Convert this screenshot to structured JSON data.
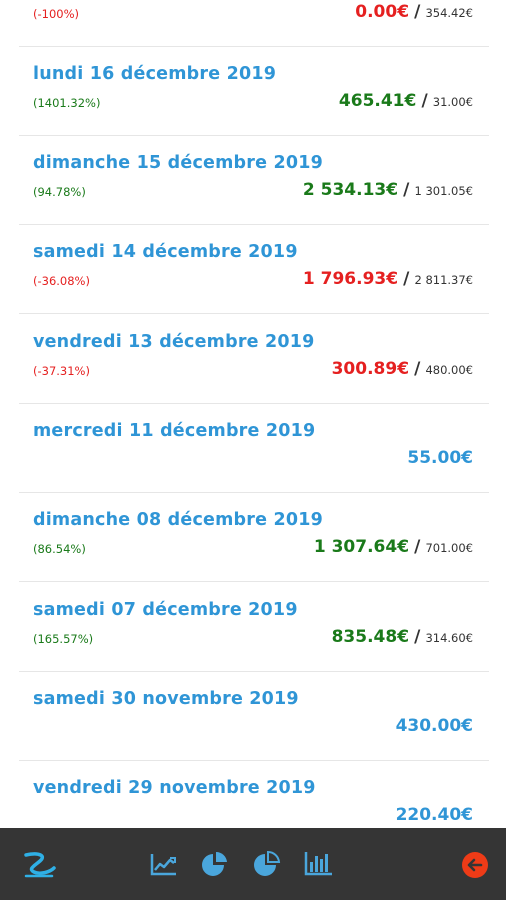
{
  "rows": [
    {
      "date": "",
      "pct": "(-100%)",
      "value": "0.00€",
      "ref": "354.42€",
      "status": "neg"
    },
    {
      "date": "lundi 16 décembre 2019",
      "pct": "(1401.32%)",
      "value": "465.41€",
      "ref": "31.00€",
      "status": "pos"
    },
    {
      "date": "dimanche 15 décembre 2019",
      "pct": "(94.78%)",
      "value": "2 534.13€",
      "ref": "1 301.05€",
      "status": "pos"
    },
    {
      "date": "samedi 14 décembre 2019",
      "pct": "(-36.08%)",
      "value": "1 796.93€",
      "ref": "2 811.37€",
      "status": "neg"
    },
    {
      "date": "vendredi 13 décembre 2019",
      "pct": "(-37.31%)",
      "value": "300.89€",
      "ref": "480.00€",
      "status": "neg"
    },
    {
      "date": "mercredi 11 décembre 2019",
      "pct": "",
      "value": "55.00€",
      "ref": "",
      "status": "neu"
    },
    {
      "date": "dimanche 08 décembre 2019",
      "pct": "(86.54%)",
      "value": "1 307.64€",
      "ref": "701.00€",
      "status": "pos"
    },
    {
      "date": "samedi 07 décembre 2019",
      "pct": "(165.57%)",
      "value": "835.48€",
      "ref": "314.60€",
      "status": "pos"
    },
    {
      "date": "samedi 30 novembre 2019",
      "pct": "",
      "value": "430.00€",
      "ref": "",
      "status": "neu"
    },
    {
      "date": "vendredi 29 novembre 2019",
      "pct": "",
      "value": "220.40€",
      "ref": "",
      "status": "neu"
    }
  ],
  "separator": "/",
  "bottombar": {
    "icons": [
      "app-logo-icon",
      "line-chart-icon",
      "pie-chart-icon",
      "pie-chart-alt-icon",
      "bar-chart-icon",
      "back-arrow-icon"
    ]
  },
  "colors": {
    "date_blue": "#2f95d6",
    "positive_green": "#1a7a1a",
    "negative_red": "#e52020",
    "bar_background": "#353535",
    "back_button": "#ee3b17"
  }
}
